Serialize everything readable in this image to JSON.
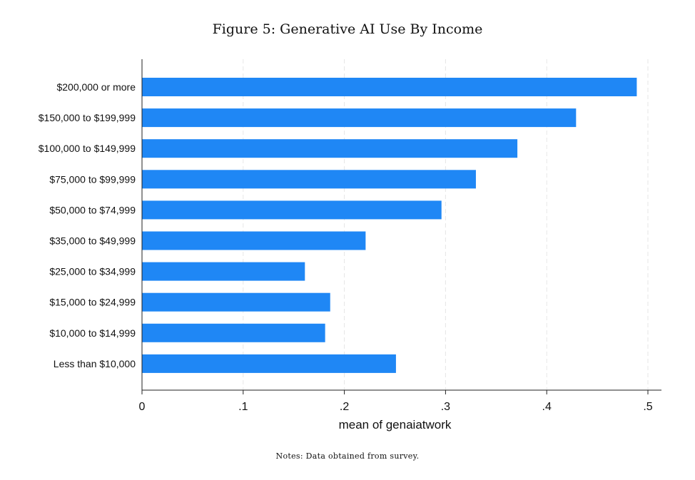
{
  "figure": {
    "title": "Figure 5: Generative AI Use By Income",
    "notes": "Notes: Data obtained from survey."
  },
  "chart_data": {
    "type": "bar",
    "orientation": "horizontal",
    "categories": [
      "$200,000 or more",
      "$150,000 to $199,999",
      "$100,000 to $149,999",
      "$75,000 to $99,999",
      "$50,000 to $74,999",
      "$35,000 to $49,999",
      "$25,000 to $34,999",
      "$15,000 to $24,999",
      "$10,000 to $14,999",
      "Less than $10,000"
    ],
    "values": [
      0.489,
      0.429,
      0.371,
      0.33,
      0.296,
      0.221,
      0.161,
      0.186,
      0.181,
      0.251
    ],
    "xlabel": "mean of genaiatwork",
    "ylabel": "",
    "xlim": [
      0,
      0.5
    ],
    "xticks": [
      0,
      0.1,
      0.2,
      0.3,
      0.4,
      0.5
    ],
    "xtick_labels": [
      "0",
      ".1",
      ".2",
      ".3",
      ".4",
      ".5"
    ],
    "grid": "vertical dashed",
    "bar_color": "#1f87f5",
    "legend": "none"
  }
}
